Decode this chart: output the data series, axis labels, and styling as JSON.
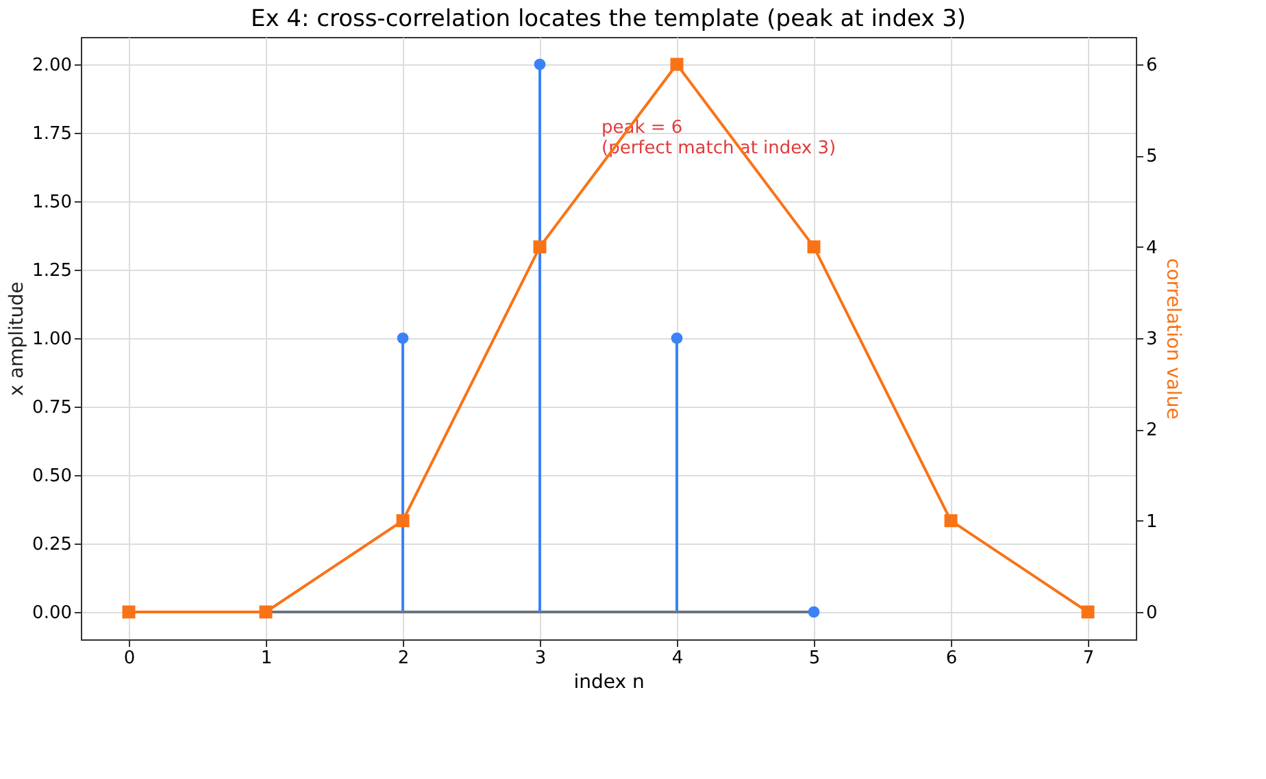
{
  "chart_data": {
    "type": "lollipop",
    "title": "Ex 4: cross-correlation locates the template (peak at index 3)",
    "xlabel": "index n",
    "ylabel": "x amplitude",
    "y2label": "correlation value",
    "xlim": [
      -0.35,
      7.35
    ],
    "xticks": [
      0,
      1,
      2,
      3,
      4,
      5,
      6,
      7
    ],
    "ylim": [
      -0.1,
      2.1
    ],
    "yticks": [
      {
        "value": 0,
        "label": "0.00"
      },
      {
        "value": 0.25,
        "label": "0.25"
      },
      {
        "value": 0.5,
        "label": "0.50"
      },
      {
        "value": 0.75,
        "label": "0.75"
      },
      {
        "value": 1,
        "label": "1.00"
      },
      {
        "value": 1.25,
        "label": "1.25"
      },
      {
        "value": 1.5,
        "label": "1.50"
      },
      {
        "value": 1.75,
        "label": "1.75"
      },
      {
        "value": 2,
        "label": "2.00"
      }
    ],
    "y2lim": [
      -0.3,
      6.3
    ],
    "y2ticks": [
      0,
      1,
      2,
      3,
      4,
      5,
      6
    ],
    "grid": true,
    "series": [
      {
        "type": "line",
        "color": "#6b7280",
        "marker": "none",
        "x": [
          0,
          5
        ],
        "values": [
          0,
          0
        ]
      },
      {
        "color": "#3b82f6",
        "marker": "circle",
        "x": [
          2,
          3,
          4,
          5
        ],
        "values": [
          1,
          2,
          1,
          0
        ]
      },
      {
        "type": "line",
        "axis": "y2",
        "color": "#f97316",
        "marker": "square",
        "x": [
          0,
          1,
          2,
          3,
          4,
          5,
          6,
          7
        ],
        "values": [
          0,
          0,
          1,
          4,
          6,
          4,
          1,
          0
        ]
      }
    ],
    "annotations": [
      {
        "text": "peak = 6\n(perfect match at index 3)",
        "x": 4,
        "y": 2
      }
    ]
  }
}
